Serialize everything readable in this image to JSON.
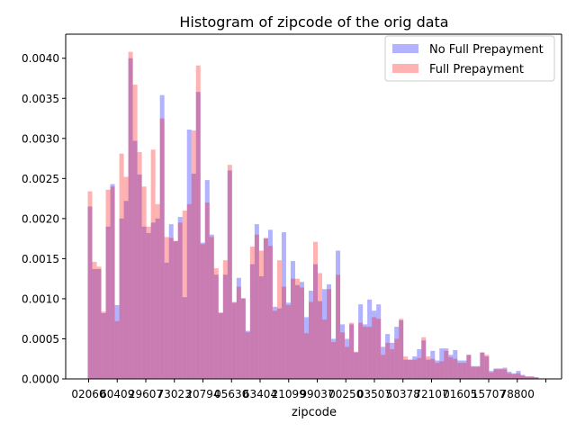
{
  "chart_data": {
    "type": "bar",
    "title": "Histogram of zipcode of the orig data",
    "xlabel": "zipcode",
    "ylabel": "",
    "ylim": [
      0,
      0.0043
    ],
    "y_ticks": [
      "0.0000",
      "0.0005",
      "0.0010",
      "0.0015",
      "0.0020",
      "0.0025",
      "0.0030",
      "0.0035",
      "0.0040"
    ],
    "x_tick_labels": [
      "02060",
      "60409",
      "29607",
      "73023",
      "20794",
      "05630",
      "63404",
      "21099",
      "99037",
      "00250",
      "03507",
      "50378",
      "72107",
      "01605",
      "15707",
      "78800",
      ""
    ],
    "legend_position": "top-right",
    "grid": false,
    "series": [
      {
        "name": "No Full Prepayment",
        "color": "#0000ff",
        "opacity": 0.3,
        "values": [
          0.00215,
          0.00137,
          0.00137,
          0.00082,
          0.0019,
          0.00243,
          0.00092,
          0.002,
          0.00222,
          0.004,
          0.00297,
          0.00255,
          0.0019,
          0.00182,
          0.00195,
          0.002,
          0.00354,
          0.00145,
          0.00193,
          0.00172,
          0.00202,
          0.00102,
          0.00311,
          0.00256,
          0.00358,
          0.0017,
          0.00248,
          0.0018,
          0.0013,
          0.00082,
          0.0013,
          0.0026,
          0.00095,
          0.00126,
          0.001,
          0.0006,
          0.00143,
          0.00193,
          0.00128,
          0.00175,
          0.00186,
          0.0009,
          0.00088,
          0.00183,
          0.00095,
          0.00147,
          0.00117,
          0.00121,
          0.00077,
          0.0011,
          0.00143,
          0.00097,
          0.00112,
          0.00118,
          0.0005,
          0.0016,
          0.00068,
          0.0005,
          0.00068,
          0.00033,
          0.00093,
          0.00068,
          0.00099,
          0.00085,
          0.00093,
          0.0004,
          0.00056,
          0.00045,
          0.00065,
          0.00073,
          0.00024,
          0.00024,
          0.00028,
          0.00037,
          0.00048,
          0.00024,
          0.00035,
          0.00023,
          0.00038,
          0.00038,
          0.0003,
          0.00036,
          0.00023,
          0.00023,
          0.0003,
          0.00016,
          0.00016,
          0.00033,
          0.00028,
          0.0001,
          0.00013,
          0.00013,
          0.00014,
          9e-05,
          7e-05,
          0.0001,
          5e-05,
          3e-05,
          3e-05,
          2e-05
        ]
      },
      {
        "name": "Full Prepayment",
        "color": "#ff0000",
        "opacity": 0.3,
        "values": [
          0.00234,
          0.00146,
          0.0014,
          0.00084,
          0.00236,
          0.0024,
          0.00072,
          0.00281,
          0.00252,
          0.00408,
          0.00367,
          0.00283,
          0.0024,
          0.0019,
          0.00286,
          0.00218,
          0.00325,
          0.00177,
          0.00176,
          0.00172,
          0.00195,
          0.0021,
          0.00218,
          0.0031,
          0.00391,
          0.00168,
          0.0022,
          0.00177,
          0.00138,
          0.00083,
          0.00148,
          0.00267,
          0.00096,
          0.00115,
          0.00101,
          0.00058,
          0.00165,
          0.0018,
          0.0016,
          0.00176,
          0.00166,
          0.00085,
          0.00148,
          0.00115,
          0.00092,
          0.00125,
          0.00125,
          0.00114,
          0.00057,
          0.00096,
          0.00171,
          0.00132,
          0.00074,
          0.00112,
          0.00046,
          0.0013,
          0.00058,
          0.0004,
          0.0007,
          0.00034,
          0.0007,
          0.00065,
          0.00065,
          0.00077,
          0.00075,
          0.0003,
          0.00045,
          0.00037,
          0.0005,
          0.00075,
          0.00028,
          0.00024,
          0.00024,
          0.00026,
          0.00052,
          0.00028,
          0.00025,
          0.0002,
          0.00022,
          0.00035,
          0.00027,
          0.00025,
          0.0002,
          0.0002,
          0.0003,
          0.00015,
          0.00015,
          0.00033,
          0.0003,
          8e-05,
          0.00012,
          0.00012,
          0.00012,
          7e-05,
          6e-05,
          7e-05,
          4e-05,
          3e-05,
          3e-05,
          2e-05
        ]
      }
    ]
  }
}
